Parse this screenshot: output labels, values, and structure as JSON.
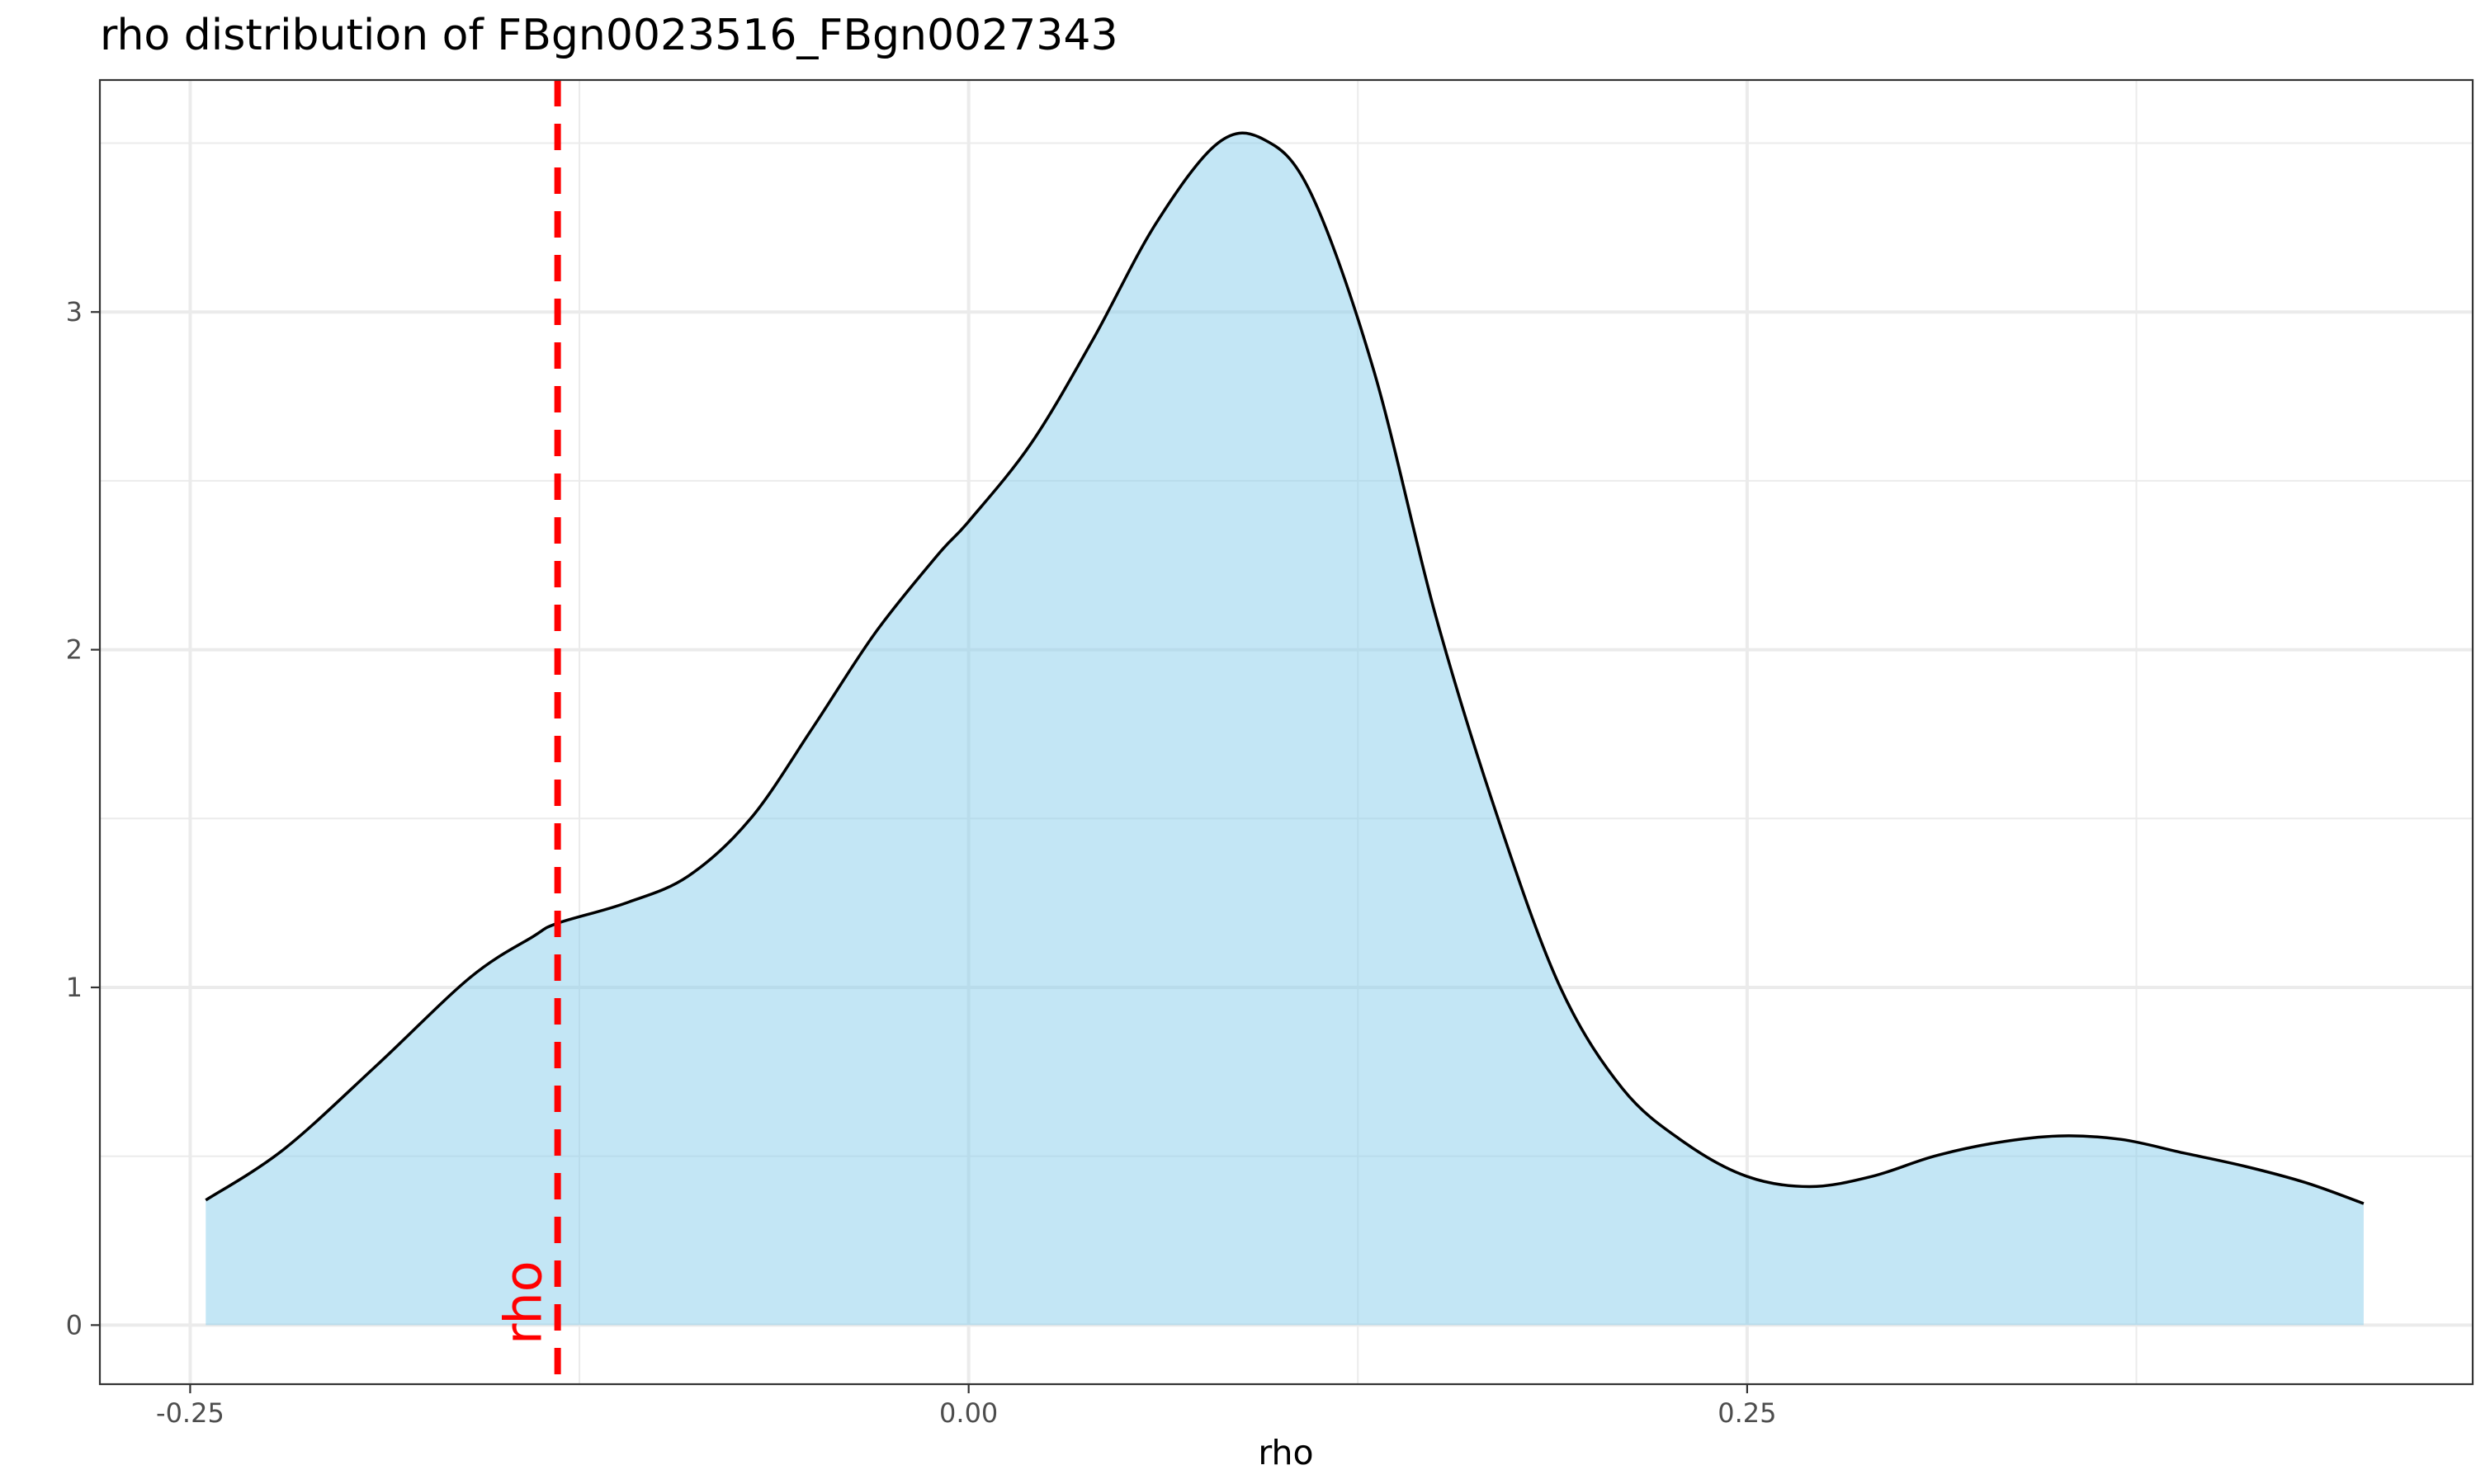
{
  "chart_data": {
    "type": "area",
    "title": "rho distribution of FBgn0023516_FBgn0027343",
    "xlabel": "rho",
    "ylabel": "",
    "xlim": [
      -0.279,
      0.483
    ],
    "ylim": [
      -0.175,
      3.687
    ],
    "x_ticks": [
      -0.25,
      0.0,
      0.25
    ],
    "x_tick_labels": [
      "-0.25",
      "0.00",
      "0.25"
    ],
    "y_ticks": [
      0,
      1,
      2,
      3
    ],
    "y_tick_labels": [
      "0",
      "1",
      "2",
      "3"
    ],
    "x_minor_ticks": [
      -0.125,
      0.125,
      0.375
    ],
    "y_minor_ticks": [
      0.5,
      1.5,
      2.5,
      3.5
    ],
    "grid": true,
    "legend": "none",
    "fill_color": "#87ceeb",
    "fill_opacity": 0.5,
    "line_color": "#000000",
    "series": [
      {
        "x": [
          -0.245,
          -0.22,
          -0.19,
          -0.16,
          -0.14,
          -0.132,
          -0.11,
          -0.09,
          -0.07,
          -0.05,
          -0.03,
          -0.01,
          0.0,
          0.02,
          0.04,
          0.06,
          0.08,
          0.095,
          0.11,
          0.13,
          0.15,
          0.17,
          0.19,
          0.21,
          0.23,
          0.25,
          0.27,
          0.29,
          0.31,
          0.33,
          0.35,
          0.37,
          0.39,
          0.41,
          0.43,
          0.448
        ],
        "y": [
          0.37,
          0.52,
          0.77,
          1.03,
          1.15,
          1.19,
          1.25,
          1.33,
          1.5,
          1.77,
          2.05,
          2.28,
          2.38,
          2.61,
          2.92,
          3.26,
          3.5,
          3.51,
          3.35,
          2.83,
          2.1,
          1.5,
          1.0,
          0.7,
          0.54,
          0.44,
          0.41,
          0.44,
          0.5,
          0.54,
          0.56,
          0.55,
          0.51,
          0.47,
          0.42,
          0.36
        ]
      }
    ],
    "reference_line": {
      "x": -0.132,
      "label": "rho",
      "color": "#ff0000",
      "style": "dashed"
    }
  }
}
